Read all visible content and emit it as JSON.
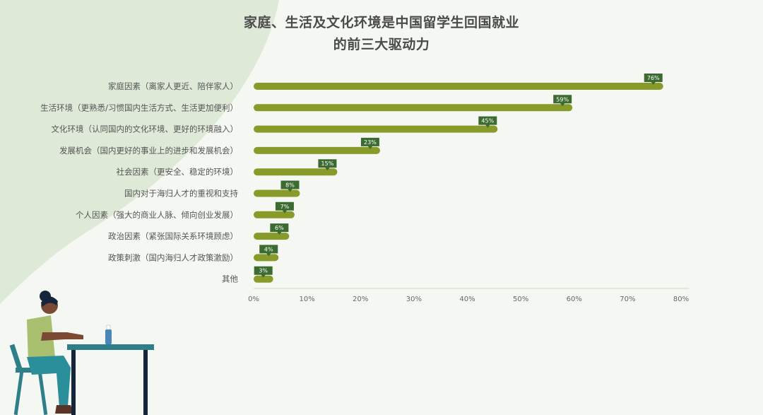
{
  "header": {
    "title_line1": "家庭、生活及文化环境是中国留学生回国就业",
    "title_line2": "的前三大驱动力"
  },
  "colors": {
    "bar": "#879a2a",
    "label_box": "#3c6b32",
    "axis": "#cfd4cc",
    "background": "#f5f8f2",
    "corner_shape": "#dfe9d8"
  },
  "chart_data": {
    "type": "bar",
    "orientation": "horizontal",
    "title": "家庭、生活及文化环境是中国留学生回国就业的前三大驱动力",
    "categories": [
      "家庭因素（离家人更近、陪伴家人）",
      "生活环境（更熟悉/习惯国内生活方式、生活更加便利）",
      "文化环境（认同国内的文化环境、更好的环境融入）",
      "发展机会（国内更好的事业上的进步和发展机会）",
      "社会因素（更安全、稳定的环境）",
      "国内对于海归人才的重视和支持",
      "个人因素（强大的商业人脉、倾向创业发展）",
      "政治因素（紧张国际关系环境顾虑）",
      "政策刺激（国内海归人才政策激励）",
      "其他"
    ],
    "values": [
      76,
      59,
      45,
      23,
      15,
      8,
      7,
      6,
      4,
      3
    ],
    "value_labels": [
      "76%",
      "59%",
      "45%",
      "23%",
      "15%",
      "8%",
      "7%",
      "6%",
      "4%",
      "3%"
    ],
    "xlim": [
      0,
      80
    ],
    "xticks": [
      "0%",
      "10%",
      "20%",
      "30%",
      "40%",
      "50%",
      "60%",
      "70%",
      "80%"
    ],
    "grid": false
  }
}
